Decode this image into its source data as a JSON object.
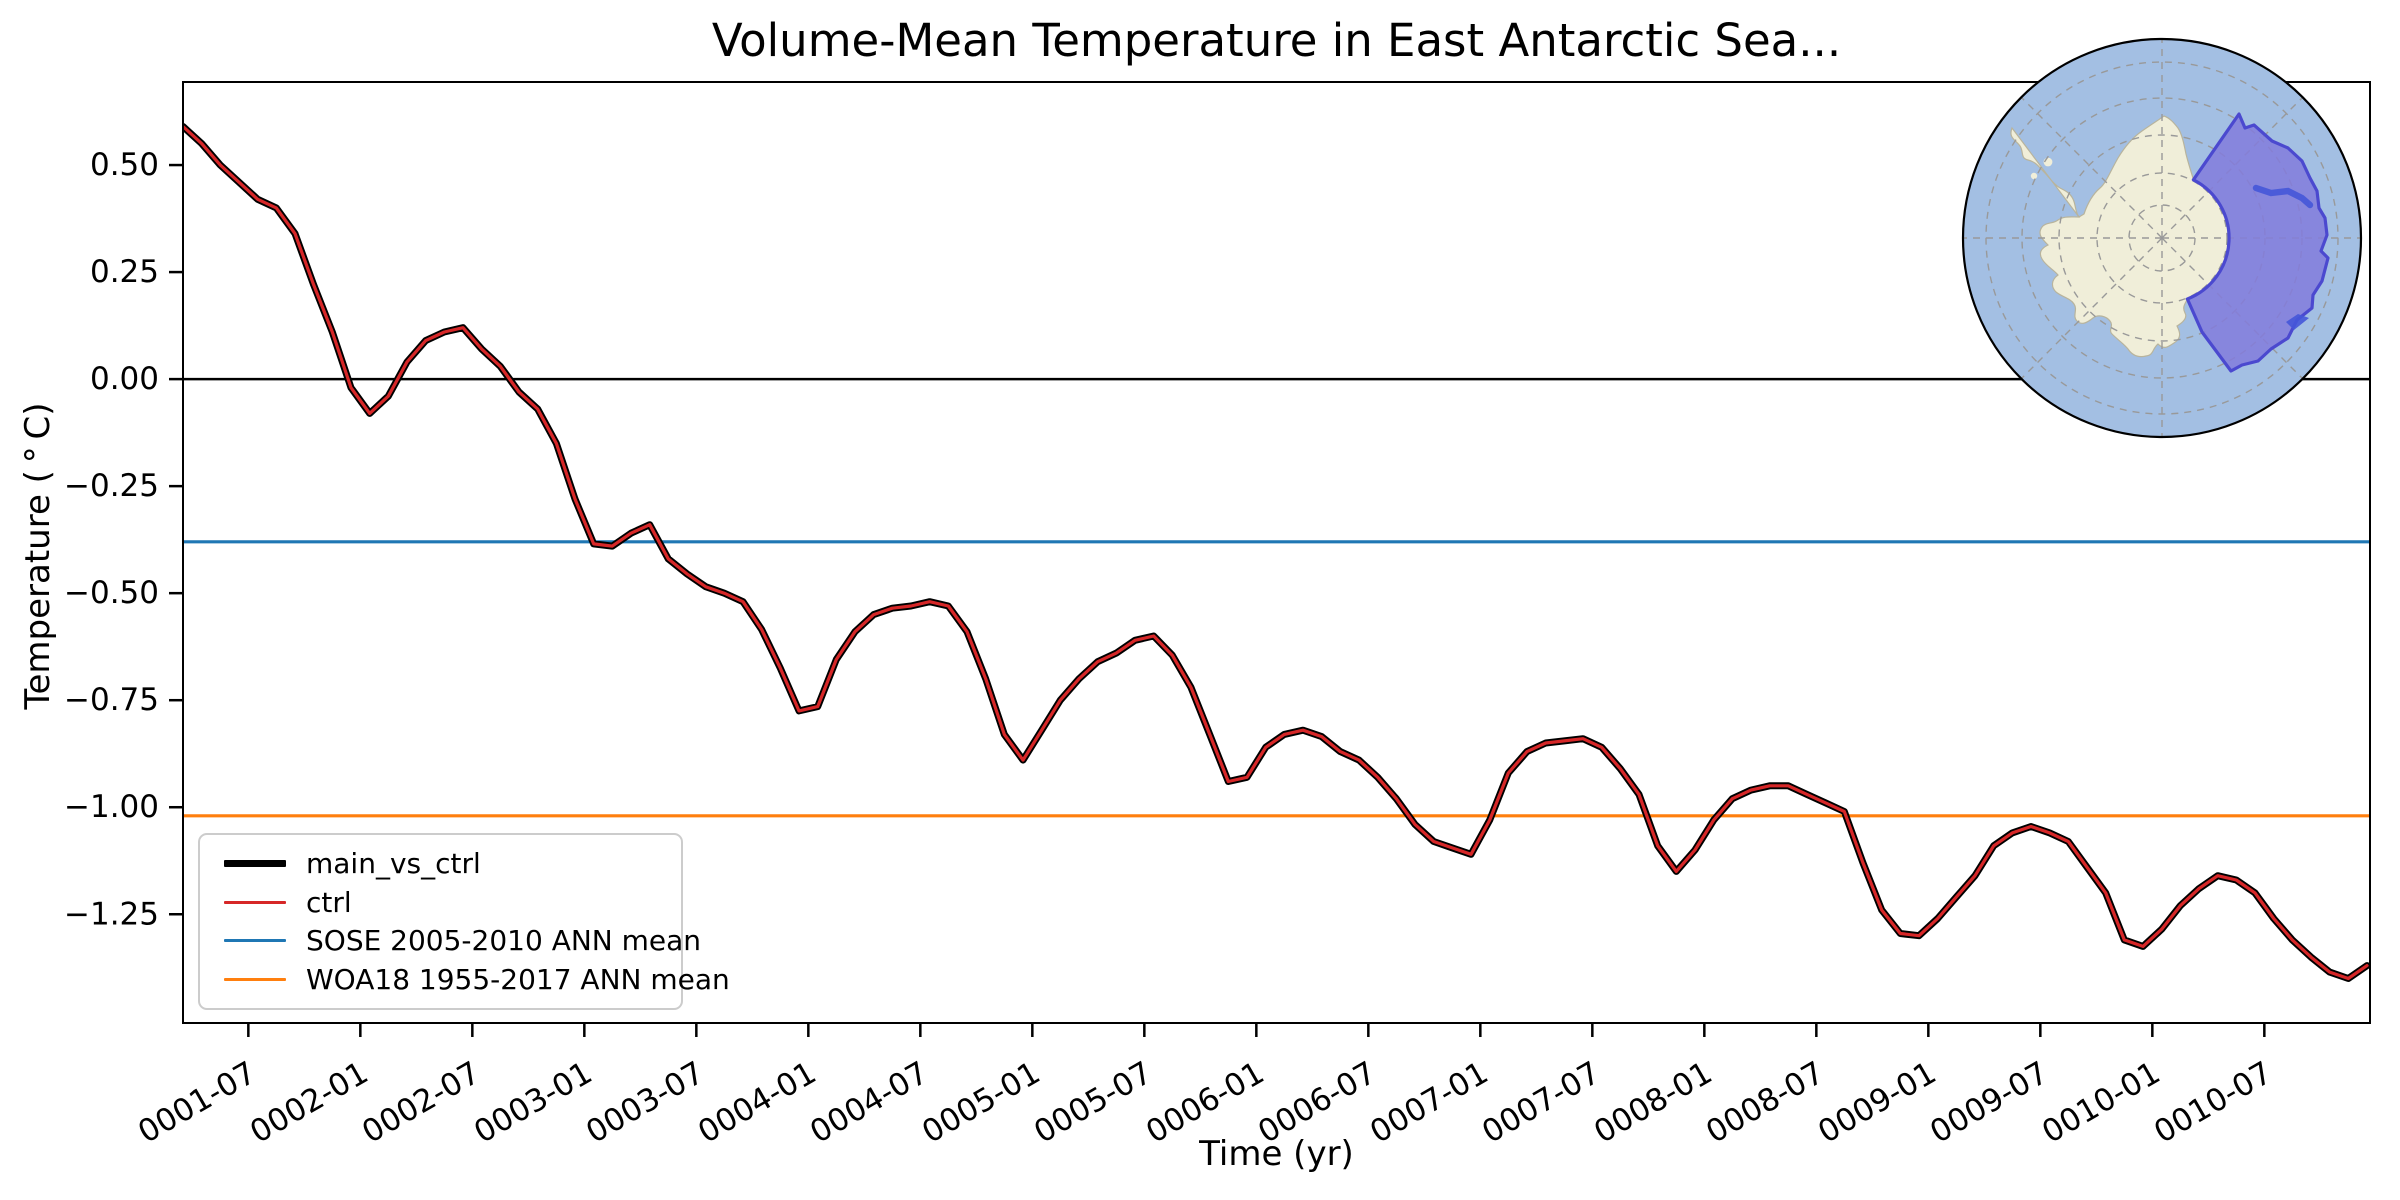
{
  "title": "Volume-Mean Temperature in East Antarctic Sea...",
  "xlabel": "Time (yr)",
  "ylabel": "Temperature ( ° C)",
  "legend": [
    {
      "label": "main_vs_ctrl",
      "color": "#000000",
      "swatch_height": 7
    },
    {
      "label": "ctrl",
      "color": "#d62728",
      "swatch_height": 3
    },
    {
      "label": "SOSE 2005-2010 ANN mean",
      "color": "#1f77b4",
      "swatch_height": 3
    },
    {
      "label": "WOA18 1955-2017 ANN mean",
      "color": "#ff7f0e",
      "swatch_height": 3
    }
  ],
  "colors": {
    "main_line": "#000000",
    "ctrl_line": "#d62728",
    "sose_line": "#1f77b4",
    "woa18_line": "#ff7f0e",
    "axes": "#000000"
  },
  "chart_data": {
    "type": "line",
    "title": "Volume-Mean Temperature in East Antarctic Sea...",
    "xlabel": "Time (yr)",
    "ylabel": "Temperature (°C)",
    "x_start": "0001-03",
    "x_end": "0010-12",
    "x_freq": "monthly",
    "n_points": 118,
    "ylim": [
      -1.504,
      0.694
    ],
    "grid": false,
    "legend_position": "lower left",
    "x_tick_rotation_deg": 30,
    "x_tick_labels": [
      "0001-07",
      "0002-01",
      "0002-07",
      "0003-01",
      "0003-07",
      "0004-01",
      "0004-07",
      "0005-01",
      "0005-07",
      "0006-01",
      "0006-07",
      "0007-01",
      "0007-07",
      "0008-01",
      "0008-07",
      "0009-01",
      "0009-07",
      "0010-01",
      "0010-07"
    ],
    "x_tick_indices": [
      3.5,
      9.5,
      15.5,
      21.5,
      27.5,
      33.5,
      39.5,
      45.5,
      51.5,
      57.5,
      63.5,
      69.5,
      75.5,
      81.5,
      87.5,
      93.5,
      99.5,
      105.5,
      111.5
    ],
    "y_tick_values": [
      0.5,
      0.25,
      0.0,
      -0.25,
      -0.5,
      -0.75,
      -1.0,
      -1.25
    ],
    "y_tick_labels": [
      "0.50",
      "0.25",
      "0.00",
      "−0.25",
      "−0.50",
      "−0.75",
      "−1.00",
      "−1.25"
    ],
    "series": [
      {
        "name": "main_vs_ctrl",
        "color": "#000000",
        "linewidth": 7,
        "values": [
          0.59,
          0.55,
          0.5,
          0.46,
          0.42,
          0.4,
          0.34,
          0.22,
          0.11,
          -0.02,
          -0.08,
          -0.04,
          0.04,
          0.09,
          0.11,
          0.12,
          0.07,
          0.03,
          -0.03,
          -0.07,
          -0.15,
          -0.28,
          -0.385,
          -0.39,
          -0.36,
          -0.34,
          -0.42,
          -0.455,
          -0.485,
          -0.5,
          -0.52,
          -0.585,
          -0.675,
          -0.775,
          -0.765,
          -0.655,
          -0.59,
          -0.55,
          -0.535,
          -0.53,
          -0.52,
          -0.53,
          -0.59,
          -0.7,
          -0.83,
          -0.89,
          -0.82,
          -0.75,
          -0.7,
          -0.66,
          -0.64,
          -0.61,
          -0.6,
          -0.645,
          -0.72,
          -0.83,
          -0.94,
          -0.93,
          -0.86,
          -0.83,
          -0.82,
          -0.835,
          -0.87,
          -0.89,
          -0.93,
          -0.98,
          -1.04,
          -1.08,
          -1.095,
          -1.11,
          -1.03,
          -0.92,
          -0.87,
          -0.85,
          -0.845,
          -0.84,
          -0.86,
          -0.91,
          -0.97,
          -1.09,
          -1.15,
          -1.1,
          -1.03,
          -0.98,
          -0.96,
          -0.95,
          -0.95,
          -0.97,
          -0.99,
          -1.01,
          -1.13,
          -1.24,
          -1.295,
          -1.3,
          -1.26,
          -1.21,
          -1.16,
          -1.09,
          -1.06,
          -1.045,
          -1.06,
          -1.08,
          -1.14,
          -1.2,
          -1.31,
          -1.325,
          -1.285,
          -1.23,
          -1.19,
          -1.16,
          -1.17,
          -1.2,
          -1.26,
          -1.31,
          -1.35,
          -1.385,
          -1.4,
          -1.37
        ]
      },
      {
        "name": "ctrl",
        "color": "#d62728",
        "linewidth": 3.2,
        "same_as": "main_vs_ctrl"
      }
    ],
    "reference_lines": [
      {
        "name": "zero",
        "value": 0.0,
        "color": "#000000",
        "linewidth": 2.5,
        "label": null
      },
      {
        "name": "SOSE 2005-2010 ANN mean",
        "value": -0.38,
        "color": "#1f77b4",
        "linewidth": 3.2,
        "label": "SOSE 2005-2010 ANN mean"
      },
      {
        "name": "WOA18 1955-2017 ANN mean",
        "value": -1.02,
        "color": "#ff7f0e",
        "linewidth": 3.2,
        "label": "WOA18 1955-2017 ANN mean"
      }
    ]
  },
  "inset_map": {
    "description": "South polar stereographic map of Antarctica with East Antarctic seas sector highlighted",
    "colors": {
      "ocean": "#a3bfe3",
      "land": "#f0eed9",
      "coast": "#b8b49d",
      "graticule": "#999999",
      "sector_fill": "#827bdc",
      "sector_fill_opacity": 0.85,
      "sector_edge": "#4b49cf",
      "accent": "#4556d8",
      "rim": "#000000"
    }
  }
}
